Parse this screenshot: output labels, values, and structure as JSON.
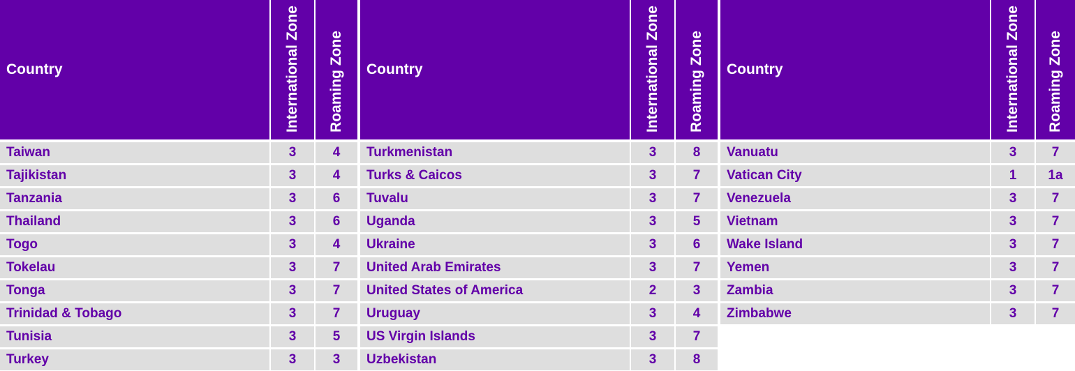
{
  "headers": {
    "country": "Country",
    "international_zone": "International Zone",
    "roaming_zone": "Roaming Zone"
  },
  "colors": {
    "header_bg": "#6200a8",
    "header_text": "#ffffff",
    "row_bg": "#dedede",
    "row_text": "#6200a8"
  },
  "columns": [
    {
      "rows": [
        {
          "country": "Taiwan",
          "international": "3",
          "roaming": "4"
        },
        {
          "country": "Tajikistan",
          "international": "3",
          "roaming": "4"
        },
        {
          "country": "Tanzania",
          "international": "3",
          "roaming": "6"
        },
        {
          "country": "Thailand",
          "international": "3",
          "roaming": "6"
        },
        {
          "country": "Togo",
          "international": "3",
          "roaming": "4"
        },
        {
          "country": "Tokelau",
          "international": "3",
          "roaming": "7"
        },
        {
          "country": "Tonga",
          "international": "3",
          "roaming": "7"
        },
        {
          "country": "Trinidad & Tobago",
          "international": "3",
          "roaming": "7"
        },
        {
          "country": "Tunisia",
          "international": "3",
          "roaming": "5"
        },
        {
          "country": "Turkey",
          "international": "3",
          "roaming": "3"
        }
      ]
    },
    {
      "rows": [
        {
          "country": "Turkmenistan",
          "international": "3",
          "roaming": "8"
        },
        {
          "country": "Turks & Caicos",
          "international": "3",
          "roaming": "7"
        },
        {
          "country": "Tuvalu",
          "international": "3",
          "roaming": "7"
        },
        {
          "country": "Uganda",
          "international": "3",
          "roaming": "5"
        },
        {
          "country": "Ukraine",
          "international": "3",
          "roaming": "6"
        },
        {
          "country": "United Arab Emirates",
          "international": "3",
          "roaming": "7"
        },
        {
          "country": "United States of America",
          "international": "2",
          "roaming": "3"
        },
        {
          "country": "Uruguay",
          "international": "3",
          "roaming": "4"
        },
        {
          "country": "US Virgin Islands",
          "international": "3",
          "roaming": "7"
        },
        {
          "country": "Uzbekistan",
          "international": "3",
          "roaming": "8"
        }
      ]
    },
    {
      "rows": [
        {
          "country": "Vanuatu",
          "international": "3",
          "roaming": "7"
        },
        {
          "country": "Vatican City",
          "international": "1",
          "roaming": "1a"
        },
        {
          "country": "Venezuela",
          "international": "3",
          "roaming": "7"
        },
        {
          "country": "Vietnam",
          "international": "3",
          "roaming": "7"
        },
        {
          "country": "Wake Island",
          "international": "3",
          "roaming": "7"
        },
        {
          "country": "Yemen",
          "international": "3",
          "roaming": "7"
        },
        {
          "country": "Zambia",
          "international": "3",
          "roaming": "7"
        },
        {
          "country": "Zimbabwe",
          "international": "3",
          "roaming": "7"
        }
      ]
    }
  ]
}
